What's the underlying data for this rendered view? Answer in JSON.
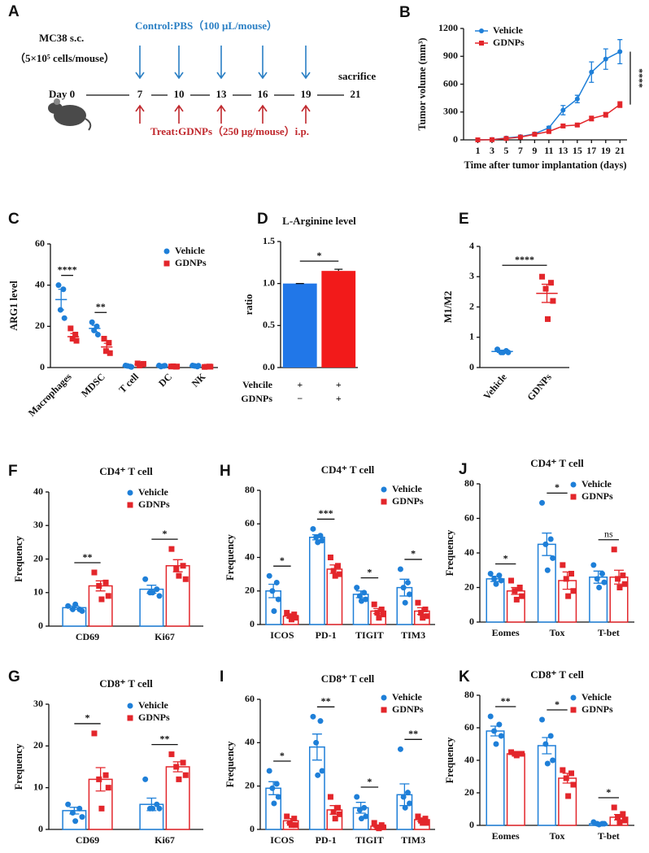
{
  "schematic": {
    "panel": "A",
    "model": "MC38 s.c.",
    "dose": "（5×10⁵ cells/mouse）",
    "control": "Control:PBS（100 μL/mouse）",
    "treat": "Treat:GDNPs（250 μg/mouse）i.p.",
    "start": "Day 0",
    "days": [
      "7",
      "10",
      "13",
      "16",
      "19",
      "21"
    ],
    "end": "sacrifice"
  },
  "chart_data": [
    {
      "type": "line",
      "panel": "B",
      "ylabel": "Tumor volume (mm³)",
      "xlabel": "Time after tumor implantation (days)",
      "x": [
        1,
        3,
        5,
        7,
        9,
        11,
        13,
        15,
        17,
        19,
        21
      ],
      "xlim": [
        -1,
        22
      ],
      "xticks": [
        1,
        3,
        5,
        7,
        9,
        11,
        13,
        15,
        17,
        19,
        21
      ],
      "ylim": [
        0,
        1200
      ],
      "yticks": [
        0,
        300,
        600,
        900,
        1200
      ],
      "series": [
        {
          "name": "Vehicle",
          "color": "#1e7fd8",
          "marker": "circle",
          "values": [
            0,
            3,
            20,
            35,
            65,
            130,
            320,
            440,
            730,
            870,
            950
          ],
          "errors": [
            2,
            2,
            5,
            5,
            8,
            15,
            50,
            40,
            110,
            110,
            130
          ]
        },
        {
          "name": "GDNPs",
          "color": "#e3262b",
          "marker": "square",
          "values": [
            0,
            2,
            15,
            30,
            60,
            90,
            150,
            160,
            230,
            270,
            380
          ],
          "errors": [
            2,
            2,
            4,
            5,
            6,
            10,
            20,
            15,
            25,
            25,
            30
          ]
        }
      ],
      "significance": "****"
    },
    {
      "type": "dot",
      "panel": "C",
      "ylabel": "ARG1 level",
      "categories": [
        "Macrophages",
        "MDSC",
        "T cell",
        "DC",
        "NK"
      ],
      "ylim": [
        0,
        60
      ],
      "yticks": [
        0,
        20,
        40,
        60
      ],
      "series": [
        {
          "name": "Vehicle",
          "color": "#1e7fd8",
          "marker": "circle",
          "values": [
            33,
            19,
            0.7,
            0.8,
            0.8
          ],
          "errors": [
            5,
            1.5,
            0.3,
            0.2,
            0.2
          ],
          "points": [
            [
              40,
              38,
              28,
              24
            ],
            [
              22,
              20,
              18,
              16
            ],
            [
              1,
              0.5,
              0.8,
              0.3
            ],
            [
              1,
              0.8,
              0.5,
              0.9
            ],
            [
              1,
              0.5,
              0.8,
              0.9
            ]
          ]
        },
        {
          "name": "GDNPs",
          "color": "#e3262b",
          "marker": "square",
          "values": [
            15,
            10,
            1.6,
            0.5,
            0.4
          ],
          "errors": [
            1.5,
            1.8,
            0.3,
            0.1,
            0.1
          ],
          "points": [
            [
              19,
              16,
              14,
              13
            ],
            [
              14,
              12,
              8,
              7
            ],
            [
              2,
              1.5,
              1,
              1.8
            ],
            [
              0.5,
              0.4,
              0.6,
              0.5
            ],
            [
              0.3,
              0.5,
              0.4,
              0.4
            ]
          ]
        }
      ],
      "significance": [
        "****",
        "**",
        null,
        null,
        null
      ]
    },
    {
      "type": "bar",
      "panel": "D",
      "title": "L-Arginine level",
      "ylabel": "ratio",
      "values": [
        1,
        1.15
      ],
      "errors": [
        0,
        0.02
      ],
      "colors": [
        "#2177e8",
        "#f21a1a"
      ],
      "bar_style": "filled",
      "ylim": [
        0,
        1.5
      ],
      "yticks": [
        {
          "value": 0,
          "label": "0.0"
        },
        0.5,
        {
          "value": 1,
          "label": "1.0"
        },
        1.5
      ],
      "conditions": [
        {
          "name": "Vehcile",
          "marks": [
            "+",
            "+"
          ]
        },
        {
          "name": "GDNPs",
          "marks": [
            "−",
            "+"
          ]
        }
      ],
      "significance": "*"
    },
    {
      "type": "dot",
      "panel": "E",
      "ylabel": "M1/M2",
      "categories": [
        "Vehicle",
        "GDNPs"
      ],
      "values": [
        0.53,
        2.45
      ],
      "errors": [
        0.03,
        0.3
      ],
      "points": [
        [
          0.6,
          0.55,
          0.5,
          0.5,
          0.5
        ],
        [
          3,
          2.8,
          2.6,
          2.2,
          1.6
        ]
      ],
      "colors": [
        "#1e7fd8",
        "#e3262b"
      ],
      "markers": [
        "circle",
        "square"
      ],
      "ylim": [
        0,
        4
      ],
      "yticks": [
        0,
        1,
        2,
        3,
        4
      ],
      "significance": "****"
    },
    {
      "type": "bar",
      "panel": "F",
      "title": "CD4⁺ T cell",
      "ylabel": "Frequency",
      "categories": [
        "CD69",
        "Ki67"
      ],
      "bar_style": "outline",
      "ylim": [
        0,
        40
      ],
      "yticks": [
        0,
        10,
        20,
        30,
        40
      ],
      "series": [
        {
          "name": "Vehicle",
          "color": "#1e7fd8",
          "marker": "circle",
          "values": [
            5.5,
            11
          ],
          "errors": [
            0.5,
            1.2
          ],
          "points": [
            [
              6,
              5,
              5,
              4.5,
              6.5
            ],
            [
              14,
              11,
              10,
              9,
              10
            ]
          ]
        },
        {
          "name": "GDNPs",
          "color": "#e3262b",
          "marker": "square",
          "values": [
            12,
            18
          ],
          "errors": [
            1.5,
            1.8
          ],
          "points": [
            [
              16,
              13,
              12,
              9,
              8
            ],
            [
              23,
              18,
              17,
              14,
              15
            ]
          ]
        }
      ],
      "significance": [
        "**",
        "*"
      ]
    },
    {
      "type": "bar",
      "panel": "G",
      "title": "CD8⁺ T cell",
      "ylabel": "Frequency",
      "categories": [
        "CD69",
        "Ki67"
      ],
      "bar_style": "outline",
      "ylim": [
        0,
        30
      ],
      "yticks": [
        0,
        10,
        20,
        30
      ],
      "series": [
        {
          "name": "Vehicle",
          "color": "#1e7fd8",
          "marker": "circle",
          "values": [
            4.5,
            6
          ],
          "errors": [
            0.8,
            1.5
          ],
          "points": [
            [
              6,
              5,
              4,
              3,
              2
            ],
            [
              12,
              6,
              5,
              5,
              5
            ]
          ]
        },
        {
          "name": "GDNPs",
          "color": "#e3262b",
          "marker": "square",
          "values": [
            12,
            15
          ],
          "errors": [
            2.8,
            1.2
          ],
          "points": [
            [
              23,
              13,
              12,
              10,
              5
            ],
            [
              18,
              16,
              15,
              13,
              12
            ]
          ]
        }
      ],
      "significance": [
        "*",
        "**"
      ]
    },
    {
      "type": "bar",
      "panel": "H",
      "title": "CD4⁺ T cell",
      "ylabel": "Frequency",
      "categories": [
        "ICOS",
        "PD-1",
        "TIGIT",
        "TIM3"
      ],
      "bar_style": "outline",
      "ylim": [
        0,
        80
      ],
      "yticks": [
        0,
        20,
        40,
        60,
        80
      ],
      "series": [
        {
          "name": "Vehicle",
          "color": "#1e7fd8",
          "marker": "circle",
          "values": [
            20,
            52,
            18,
            22
          ],
          "errors": [
            4,
            1.5,
            2,
            5
          ],
          "points": [
            [
              29,
              25,
              20,
              15,
              8
            ],
            [
              57,
              53,
              52,
              50,
              49
            ],
            [
              22,
              19,
              17,
              15,
              14
            ],
            [
              33,
              25,
              22,
              18,
              13
            ]
          ]
        },
        {
          "name": "GDNPs",
          "color": "#e3262b",
          "marker": "square",
          "values": [
            5,
            33,
            8,
            8
          ],
          "errors": [
            1,
            2.5,
            1.5,
            2
          ],
          "points": [
            [
              7,
              6,
              5,
              4,
              3
            ],
            [
              40,
              35,
              32,
              30,
              29
            ],
            [
              12,
              9,
              7,
              6,
              4
            ],
            [
              13,
              9,
              7,
              5,
              4
            ]
          ]
        }
      ],
      "significance": [
        "*",
        "***",
        "*",
        "*"
      ]
    },
    {
      "type": "bar",
      "panel": "I",
      "title": "CD8⁺ T cell",
      "ylabel": "Frequency",
      "categories": [
        "ICOS",
        "PD-1",
        "TIGIT",
        "TIM3"
      ],
      "bar_style": "outline",
      "ylim": [
        0,
        60
      ],
      "yticks": [
        0,
        20,
        40,
        60
      ],
      "series": [
        {
          "name": "Vehicle",
          "color": "#1e7fd8",
          "marker": "circle",
          "values": [
            19,
            38,
            10,
            16
          ],
          "errors": [
            3,
            6,
            2.5,
            5
          ],
          "points": [
            [
              27,
              21,
              19,
              15,
              12
            ],
            [
              52,
              50,
              40,
              27,
              25
            ],
            [
              15,
              10,
              9,
              6,
              5
            ],
            [
              37,
              17,
              15,
              12,
              10
            ]
          ]
        },
        {
          "name": "GDNPs",
          "color": "#e3262b",
          "marker": "square",
          "values": [
            4,
            9,
            1.5,
            4.5
          ],
          "errors": [
            1,
            2,
            0.5,
            0.8
          ],
          "points": [
            [
              6,
              5,
              3,
              2,
              2
            ],
            [
              15,
              10,
              8,
              7,
              5
            ],
            [
              3,
              2,
              1,
              1,
              0.5
            ],
            [
              6,
              5,
              4,
              3,
              3
            ]
          ]
        }
      ],
      "significance": [
        "*",
        "**",
        "*",
        "**"
      ]
    },
    {
      "type": "bar",
      "panel": "J",
      "title": "CD4⁺ T cell",
      "ylabel": "Frequency",
      "categories": [
        "Eomes",
        "Tox",
        "T-bet"
      ],
      "bar_style": "outline",
      "ylim": [
        0,
        80
      ],
      "yticks": [
        0,
        20,
        40,
        60,
        80
      ],
      "series": [
        {
          "name": "Vehicle",
          "color": "#1e7fd8",
          "marker": "circle",
          "values": [
            25,
            45,
            26
          ],
          "errors": [
            1.5,
            6.5,
            3.5
          ],
          "points": [
            [
              28,
              27,
              25,
              24,
              22
            ],
            [
              69,
              48,
              45,
              37,
              30
            ],
            [
              33,
              28,
              25,
              23,
              20
            ]
          ]
        },
        {
          "name": "GDNPs",
          "color": "#e3262b",
          "marker": "square",
          "values": [
            18,
            24,
            26
          ],
          "errors": [
            2,
            5,
            4
          ],
          "points": [
            [
              24,
              20,
              18,
              15,
              13
            ],
            [
              33,
              28,
              25,
              18,
              15
            ],
            [
              42,
              27,
              25,
              22,
              20
            ]
          ]
        }
      ],
      "significance": [
        "*",
        "*",
        "ns"
      ]
    },
    {
      "type": "bar",
      "panel": "K",
      "title": "CD8⁺ T cell",
      "ylabel": "Frequency",
      "categories": [
        "Eomes",
        "Tox",
        "T-bet"
      ],
      "bar_style": "outline",
      "ylim": [
        0,
        80
      ],
      "yticks": [
        0,
        20,
        40,
        60,
        80
      ],
      "series": [
        {
          "name": "Vehicle",
          "color": "#1e7fd8",
          "marker": "circle",
          "values": [
            58,
            49,
            1
          ],
          "errors": [
            3,
            5,
            0.3
          ],
          "points": [
            [
              67,
              62,
              58,
              55,
              50
            ],
            [
              65,
              55,
              50,
              40,
              38
            ],
            [
              2,
              1,
              1,
              1,
              0.5
            ]
          ]
        },
        {
          "name": "GDNPs",
          "color": "#e3262b",
          "marker": "square",
          "values": [
            44,
            29,
            5
          ],
          "errors": [
            0.5,
            3,
            1.7
          ],
          "points": [
            [
              45,
              44,
              44,
              44,
              43
            ],
            [
              34,
              32,
              29,
              25,
              18
            ],
            [
              11,
              7,
              5,
              3,
              2
            ]
          ]
        }
      ],
      "significance": [
        "**",
        "*",
        "*"
      ]
    }
  ]
}
